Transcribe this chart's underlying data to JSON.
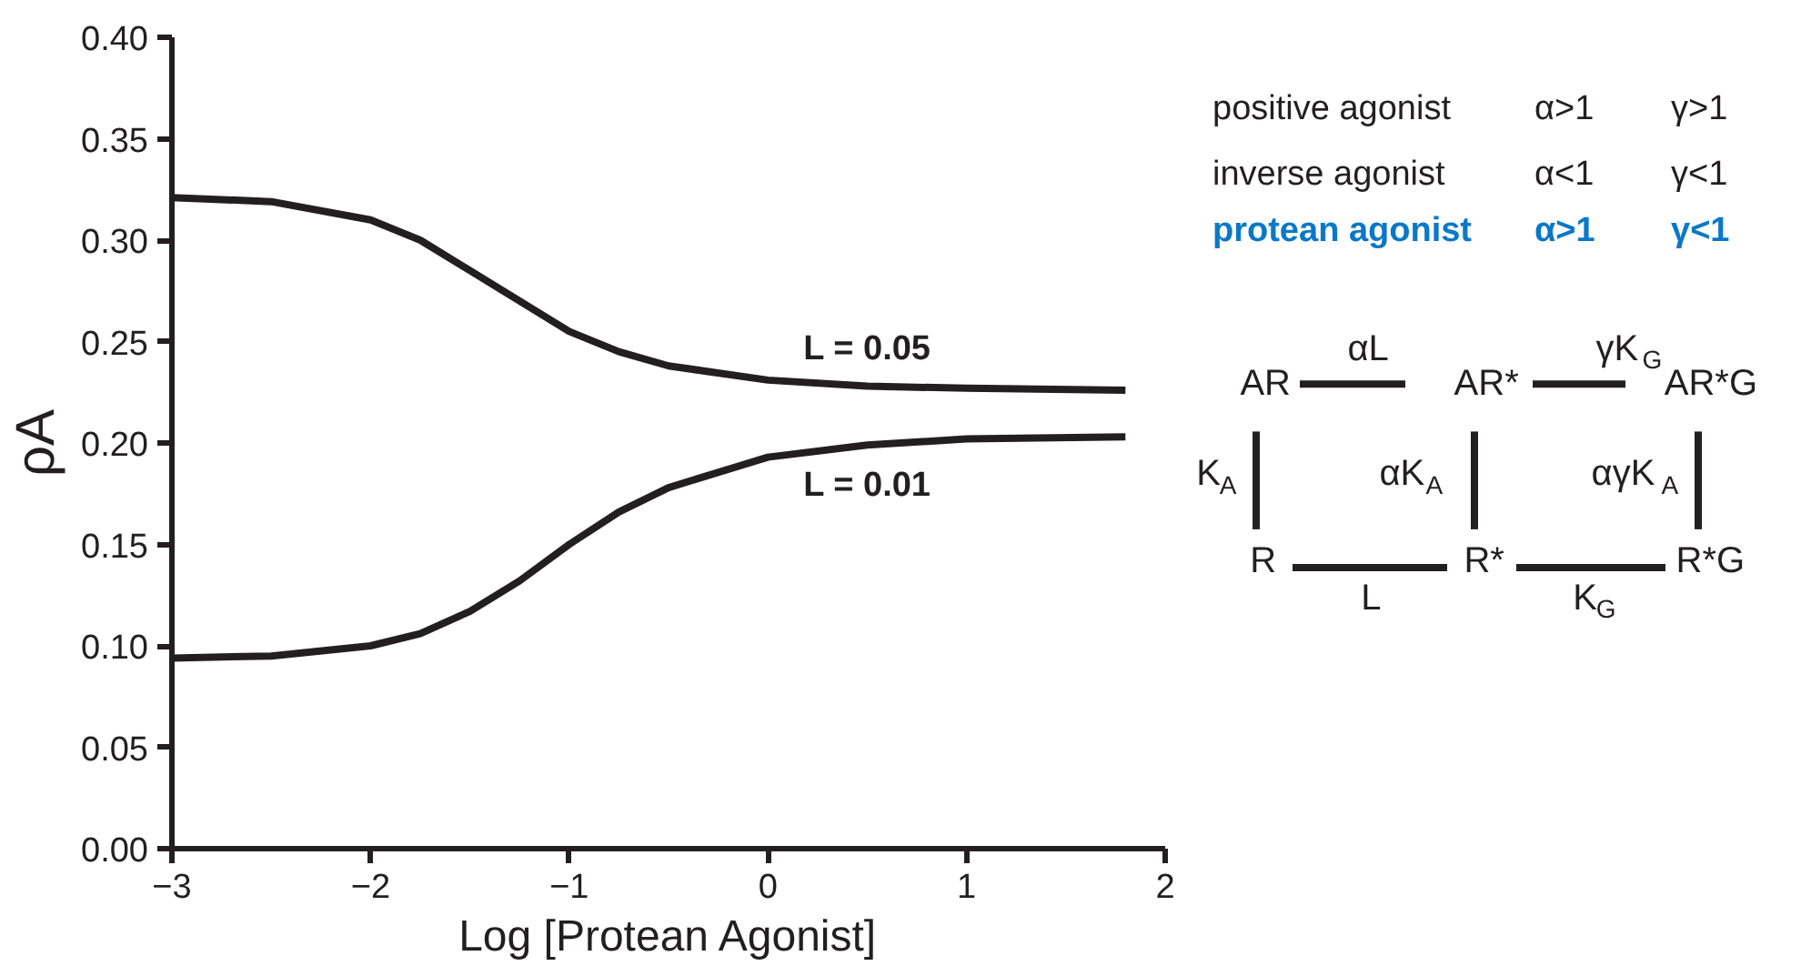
{
  "chart_data": {
    "type": "line",
    "xlabel": "Log [Protean Agonist]",
    "ylabel": "ρA",
    "xlim": [
      -3,
      2
    ],
    "ylim": [
      0,
      0.4
    ],
    "xticks": [
      -3,
      -2,
      -1,
      0,
      1,
      2
    ],
    "yticks": [
      {
        "value": 0,
        "label": "0.00"
      },
      {
        "value": 0.05,
        "label": "0.05"
      },
      {
        "value": 0.1,
        "label": "0.10"
      },
      {
        "value": 0.15,
        "label": "0.15"
      },
      {
        "value": 0.2,
        "label": "0.20"
      },
      {
        "value": 0.25,
        "label": "0.25"
      },
      {
        "value": 0.3,
        "label": "0.30"
      },
      {
        "value": 0.35,
        "label": "0.35"
      },
      {
        "value": 0.4,
        "label": "0.40"
      }
    ],
    "x": [
      -3,
      -2.5,
      -2,
      -1.75,
      -1.5,
      -1.25,
      -1,
      -0.75,
      -0.5,
      0,
      0.5,
      1,
      1.8
    ],
    "series": [
      {
        "name": "L = 0.05",
        "color": "#231f20",
        "values": [
          0.321,
          0.319,
          0.31,
          0.3,
          0.285,
          0.27,
          0.255,
          0.245,
          0.238,
          0.231,
          0.228,
          0.227,
          0.226
        ]
      },
      {
        "name": "L = 0.01",
        "color": "#231f20",
        "values": [
          0.094,
          0.095,
          0.1,
          0.106,
          0.117,
          0.132,
          0.15,
          0.166,
          0.178,
          0.193,
          0.199,
          0.202,
          0.203
        ]
      }
    ],
    "grid": false,
    "marker": "none",
    "line_style": "solid",
    "annotations": [
      "positive agonist",
      "α>1",
      "γ>1",
      "inverse agonist",
      "α<1",
      "γ<1",
      "protean agonist",
      "α>1",
      "γ<1",
      "AR",
      "αL",
      "AR*",
      "γK$_{G}$",
      "AR*G",
      "K$_{A}$",
      "αK$_{A}$",
      "αγK$_{A}$",
      "R",
      "L",
      "R*",
      "K$_{G}$",
      "R*G"
    ]
  }
}
